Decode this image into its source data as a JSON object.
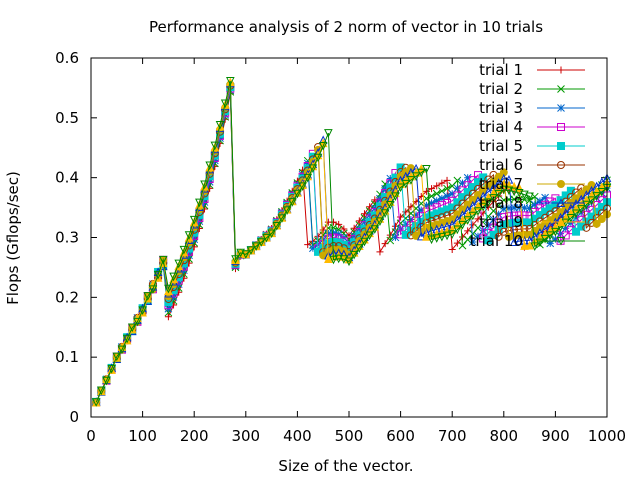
{
  "chart_data": {
    "type": "line",
    "title": "Performance analysis of 2 norm of vector in 10 trials",
    "xlabel": "Size of the vector.",
    "ylabel": "Flops (Gflops/sec)",
    "xlim": [
      0,
      1000
    ],
    "ylim": [
      0,
      0.6
    ],
    "xticks": [
      "0",
      "100",
      "200",
      "300",
      "400",
      "500",
      "600",
      "700",
      "800",
      "900",
      "1000"
    ],
    "yticks": [
      "0",
      "0.1",
      "0.2",
      "0.3",
      "0.4",
      "0.5",
      "0.6"
    ],
    "grid": false,
    "legend_position": "top-right",
    "series": [
      {
        "name": "trial 1",
        "color": "#cc0000",
        "marker": "plus"
      },
      {
        "name": "trial 2",
        "color": "#009900",
        "marker": "cross"
      },
      {
        "name": "trial 3",
        "color": "#0066cc",
        "marker": "star"
      },
      {
        "name": "trial 4",
        "color": "#cc00cc",
        "marker": "square"
      },
      {
        "name": "trial 5",
        "color": "#00cccc",
        "marker": "filled-square"
      },
      {
        "name": "trial 6",
        "color": "#993300",
        "marker": "circle"
      },
      {
        "name": "trial 7",
        "color": "#ccaa00",
        "marker": "filled-circle"
      },
      {
        "name": "trial 8",
        "color": "#0033cc",
        "marker": "triangle"
      },
      {
        "name": "trial 9",
        "color": "#ffbb00",
        "marker": "filled-triangle"
      },
      {
        "name": "trial 10",
        "color": "#008800",
        "marker": "inverted-triangle"
      }
    ],
    "common_x": [
      10,
      20,
      30,
      40,
      50,
      60,
      70,
      80,
      90,
      100,
      110,
      120,
      130,
      140,
      150,
      160,
      170,
      180,
      190,
      200,
      210,
      220,
      230,
      240,
      250,
      260,
      270,
      280,
      290,
      300,
      310,
      320,
      330,
      340,
      350,
      360,
      370,
      380,
      390,
      400,
      410,
      420,
      430,
      440,
      450,
      460,
      470,
      480,
      490,
      500,
      510,
      520,
      530,
      540,
      550,
      560,
      570,
      580,
      590,
      600,
      610,
      620,
      630,
      640,
      650,
      660,
      670,
      680,
      690,
      700,
      710,
      720,
      730,
      740,
      750,
      760,
      770,
      780,
      790,
      800,
      810,
      820,
      830,
      840,
      850,
      860,
      870,
      880,
      890,
      900,
      910,
      920,
      930,
      940,
      950,
      960,
      970,
      980,
      990,
      1000
    ],
    "profile": {
      "rising": [
        [
          10,
          0.025
        ],
        [
          50,
          0.1
        ],
        [
          100,
          0.18
        ],
        [
          150,
          0.28
        ],
        [
          200,
          0.41
        ],
        [
          230,
          0.48
        ],
        [
          260,
          0.54
        ],
        [
          280,
          0.585
        ]
      ],
      "lower": [
        [
          140,
          0.15
        ],
        [
          200,
          0.19
        ],
        [
          250,
          0.23
        ],
        [
          300,
          0.26
        ],
        [
          350,
          0.27
        ],
        [
          400,
          0.3
        ],
        [
          500,
          0.24
        ],
        [
          550,
          0.27
        ],
        [
          600,
          0.3
        ],
        [
          650,
          0.3
        ],
        [
          700,
          0.28
        ],
        [
          800,
          0.3
        ],
        [
          850,
          0.28
        ],
        [
          900,
          0.29
        ],
        [
          1000,
          0.33
        ]
      ],
      "upper": [
        [
          140,
          0.29
        ],
        [
          200,
          0.41
        ],
        [
          280,
          0.585
        ],
        [
          300,
          0.34
        ],
        [
          350,
          0.36
        ],
        [
          400,
          0.41
        ],
        [
          460,
          0.48
        ],
        [
          500,
          0.35
        ],
        [
          550,
          0.37
        ],
        [
          600,
          0.42
        ],
        [
          650,
          0.42
        ],
        [
          700,
          0.4
        ],
        [
          800,
          0.41
        ],
        [
          850,
          0.37
        ],
        [
          900,
          0.37
        ],
        [
          1000,
          0.4
        ]
      ]
    }
  }
}
